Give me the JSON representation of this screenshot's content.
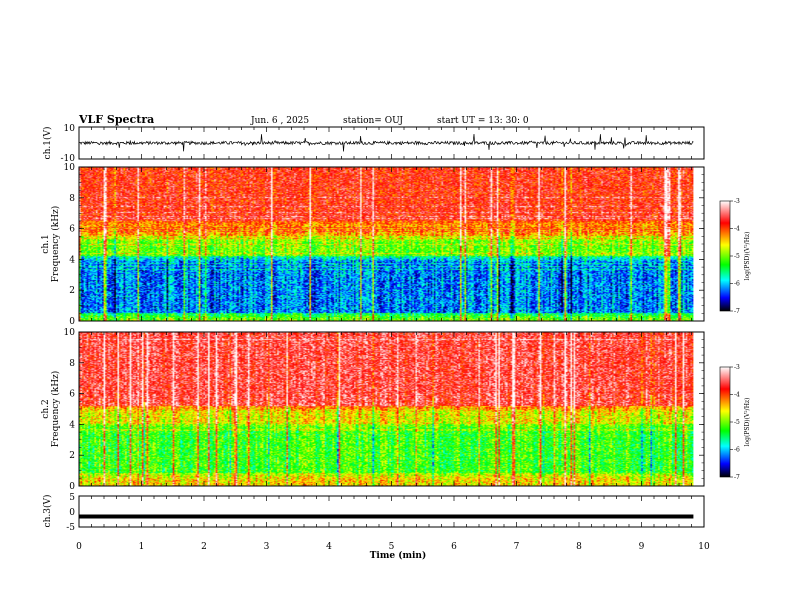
{
  "header": {
    "title": "VLF Spectra",
    "date": "Jun. 6 , 2025",
    "station": "station= OUJ",
    "start": "start UT = 13: 30: 0"
  },
  "colorbar": {
    "label": "log(PSD)(V²/Hz)",
    "ticks": [
      "-3",
      "-4",
      "-5",
      "-6",
      "-7"
    ],
    "colors": [
      "#ffffff",
      "#ff0000",
      "#ffff00",
      "#00ff00",
      "#00ffff",
      "#0000ff",
      "#000000"
    ]
  },
  "chart_data": [
    {
      "type": "line",
      "name": "ch1-waveform",
      "ylabel": "ch.1(V)",
      "ylim": [
        -10,
        10
      ],
      "yticks": [
        "10",
        "-10"
      ],
      "xlim": [
        0,
        10
      ],
      "baseline": 0,
      "description_values": {
        "typical_amplitude": 2,
        "spike_amplitude": 5
      }
    },
    {
      "type": "heatmap",
      "name": "ch1-spectrogram",
      "ylabel": "ch.1 Frequency (kHz)",
      "ylim": [
        0,
        10
      ],
      "yticks": [
        "0",
        "2",
        "4",
        "6",
        "8",
        "10"
      ],
      "xlim": [
        0,
        10
      ],
      "bands": [
        {
          "from": 0,
          "to": 0.5,
          "level": -5
        },
        {
          "from": 0.5,
          "to": 4.2,
          "level": -6.2
        },
        {
          "from": 4.2,
          "to": 5.5,
          "level": -5
        },
        {
          "from": 5.5,
          "to": 6.5,
          "level": -4.3
        },
        {
          "from": 6.5,
          "to": 10,
          "level": -3.8
        }
      ]
    },
    {
      "type": "heatmap",
      "name": "ch2-spectrogram",
      "ylabel": "ch.2 Frequency (kHz)",
      "ylim": [
        0,
        10
      ],
      "yticks": [
        "0",
        "2",
        "4",
        "6",
        "8",
        "10"
      ],
      "xlim": [
        0,
        10
      ],
      "bands": [
        {
          "from": 0,
          "to": 0.8,
          "level": -4.5
        },
        {
          "from": 0.8,
          "to": 4.0,
          "level": -5.2
        },
        {
          "from": 4.0,
          "to": 5.2,
          "level": -4.6
        },
        {
          "from": 5.2,
          "to": 10,
          "level": -3.6
        }
      ]
    },
    {
      "type": "line",
      "name": "ch3-waveform",
      "ylabel": "ch.3(V)",
      "ylim": [
        -5,
        5
      ],
      "yticks": [
        "5",
        "0",
        "-5"
      ],
      "xlim": [
        0,
        10
      ],
      "baseline": -1.6
    }
  ],
  "xaxis": {
    "label": "Time (min)",
    "ticks": [
      "0",
      "1",
      "2",
      "3",
      "4",
      "5",
      "6",
      "7",
      "8",
      "9",
      "10"
    ],
    "data_end": 9.83
  }
}
